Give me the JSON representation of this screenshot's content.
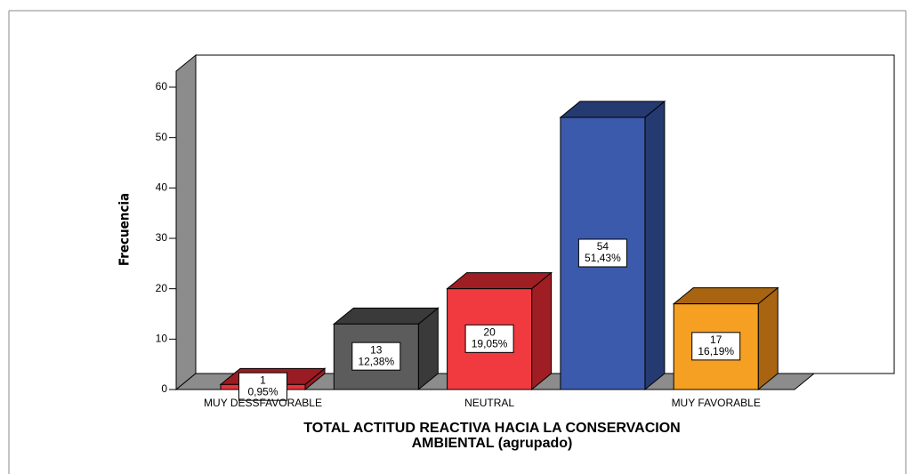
{
  "chart_data": {
    "type": "bar3d",
    "categories": [
      "MUY DESSFAVORABLE",
      null,
      "NEUTRAL",
      null,
      "MUY FAVORABLE"
    ],
    "values": [
      1,
      13,
      20,
      54,
      17
    ],
    "percentages": [
      0.95,
      12.38,
      19.05,
      51.43,
      16.19
    ],
    "percentage_labels": [
      "0,95%",
      "12,38%",
      "19,05%",
      "51,43%",
      "16,19%"
    ],
    "colors": [
      "#e8323a",
      "#5c5c5c",
      "#f03a40",
      "#3c5aac",
      "#f5a023"
    ],
    "side_colors": [
      "#9a1c22",
      "#3a3a3a",
      "#9e1e24",
      "#263a72",
      "#a86410"
    ],
    "xlabel": [
      "TOTAL ACTITUD REACTIVA HACIA LA CONSERVACION",
      "AMBIENTAL (agrupado)"
    ],
    "ylabel": "Frecuencia",
    "ylim": [
      0,
      60
    ],
    "yticks": [
      0,
      10,
      20,
      30,
      40,
      50,
      60
    ]
  }
}
